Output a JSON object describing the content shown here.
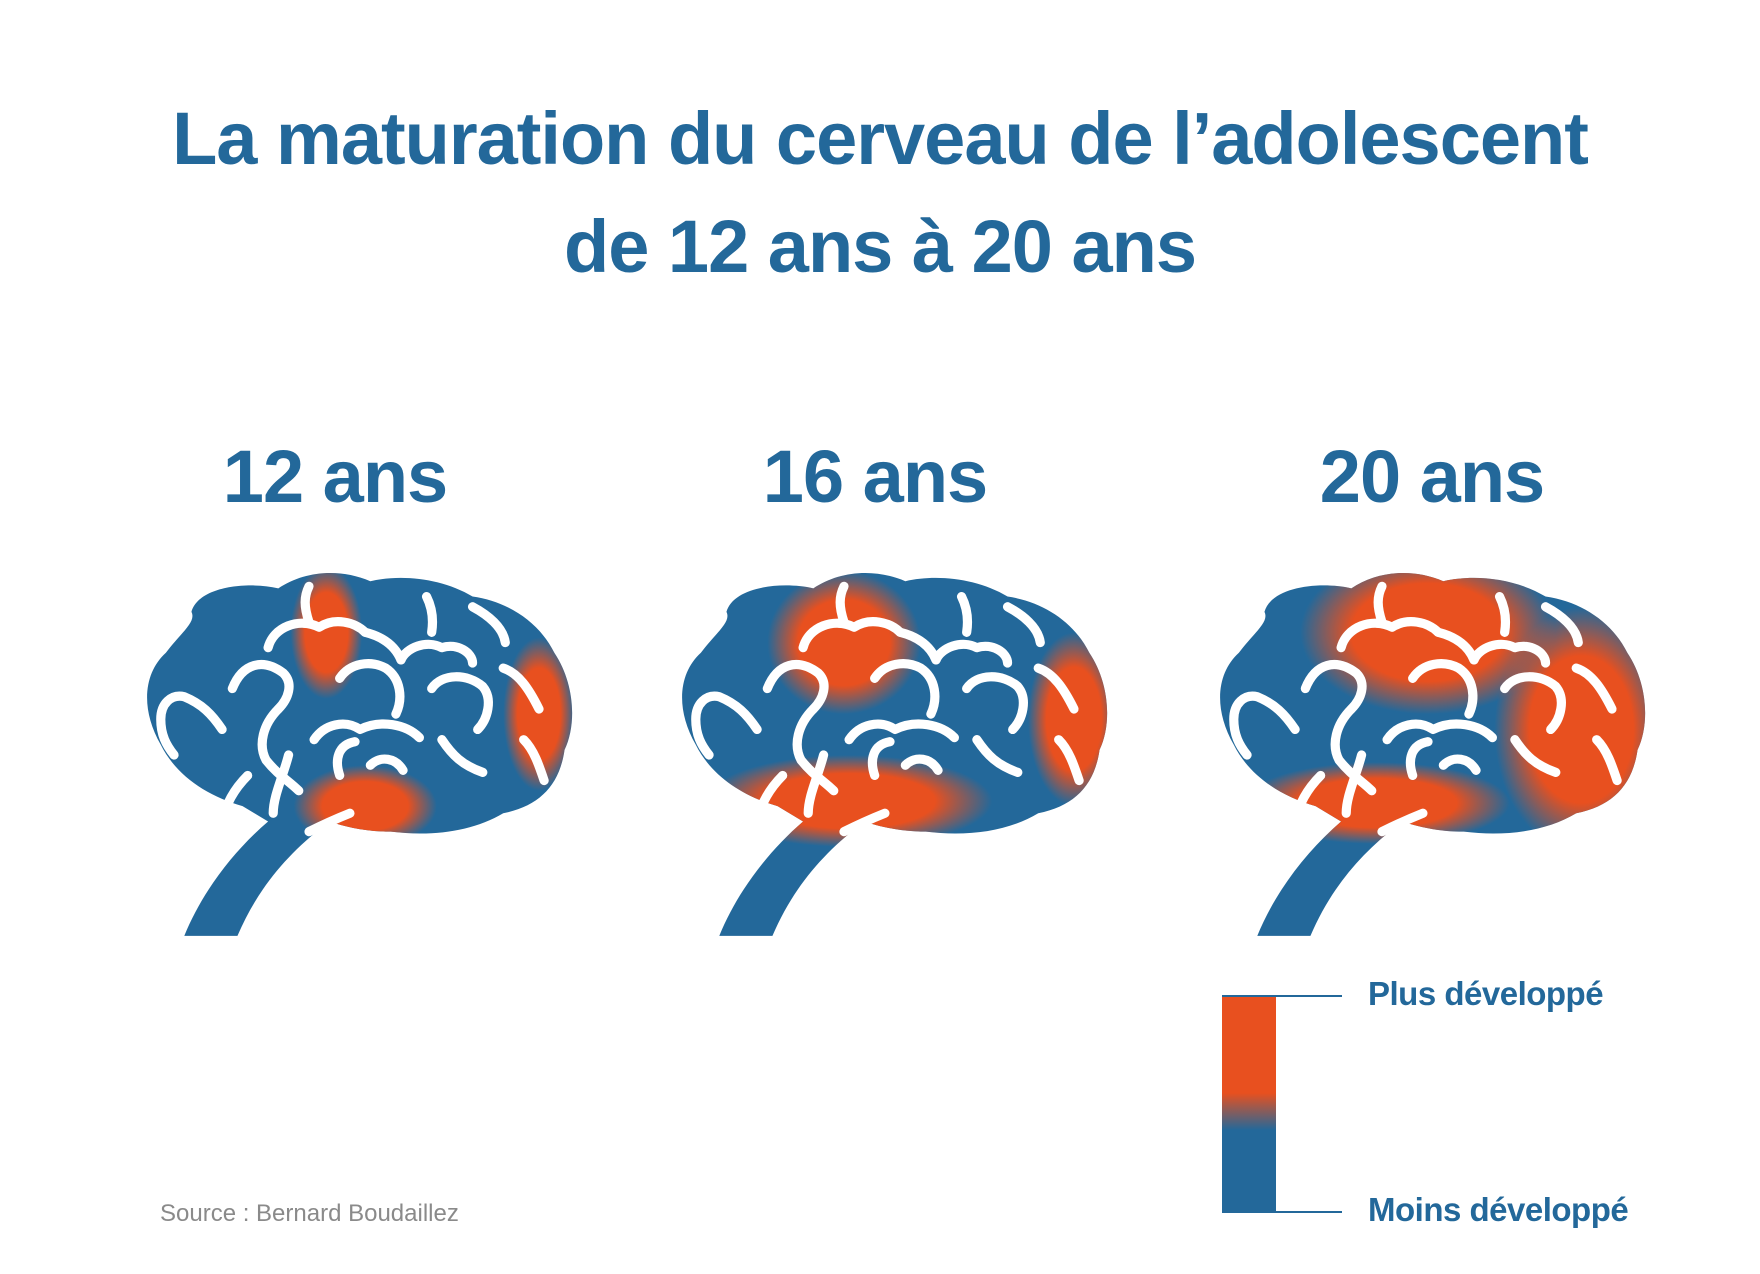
{
  "title": {
    "line1": "La maturation du cerveau de l’adolescent",
    "line2": "de 12 ans à 20 ans"
  },
  "brains": [
    {
      "label": "12 ans",
      "development": "low"
    },
    {
      "label": "16 ans",
      "development": "medium"
    },
    {
      "label": "20 ans",
      "development": "high"
    }
  ],
  "legend": {
    "top_label": "Plus développé",
    "bottom_label": "Moins développé"
  },
  "source": "Source : Bernard Boudaillez",
  "colors": {
    "blue": "#23689A",
    "orange": "#E8501F",
    "white": "#ffffff",
    "source_gray": "#8a8a8a"
  }
}
